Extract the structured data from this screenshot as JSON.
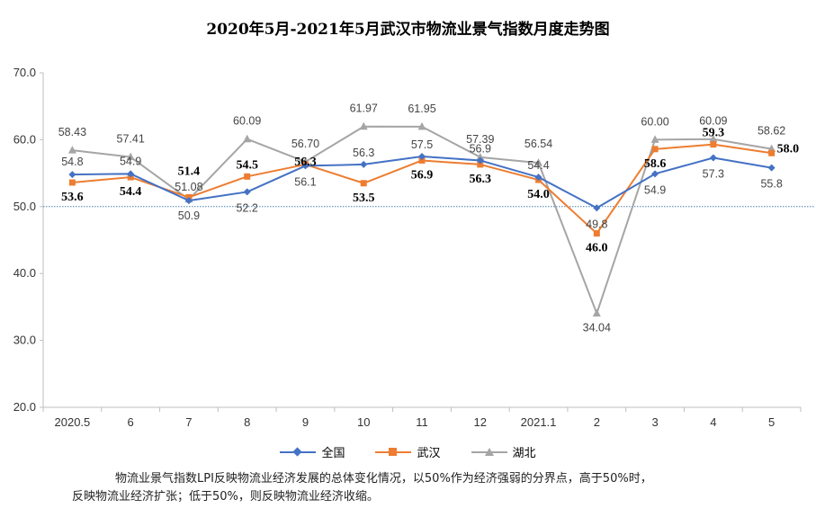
{
  "title": "2020年5月-2021年5月武汉市物流业景气指数月度走势图",
  "legend": {
    "national": "全国",
    "wuhan": "武汉",
    "hubei": "湖北"
  },
  "note": {
    "line1": "物流业景气指数LPI反映物流业经济发展的总体变化情况，以50%作为经济强弱的分界点，高于50%时，",
    "line2": "反映物流业经济扩张；低于50%，则反映物流业经济收缩。"
  },
  "colors": {
    "national": "#4472C4",
    "wuhan": "#ED7D31",
    "hubei": "#A5A5A5",
    "reference": "#4A7FB0"
  },
  "chart_data": {
    "type": "line",
    "title": "2020年5月-2021年5月武汉市物流业景气指数月度走势图",
    "categories": [
      "2020.5",
      "6",
      "7",
      "8",
      "9",
      "10",
      "11",
      "12",
      "2021.1",
      "2",
      "3",
      "4",
      "5"
    ],
    "ylim": [
      20,
      70
    ],
    "yticks": [
      "20.0",
      "30.0",
      "40.0",
      "50.0",
      "60.0",
      "70.0"
    ],
    "reference_line": 50,
    "series": [
      {
        "name": "全国",
        "marker": "diamond",
        "values": [
          54.8,
          54.9,
          50.9,
          52.2,
          56.1,
          56.3,
          57.5,
          56.9,
          54.4,
          49.8,
          54.9,
          57.3,
          55.8
        ],
        "labels": [
          "54.8",
          "54.9",
          "50.9",
          "52.2",
          "56.1",
          "56.3",
          "57.5",
          "56.9",
          "54.4",
          "49.8",
          "54.9",
          "57.3",
          "55.8"
        ]
      },
      {
        "name": "武汉",
        "marker": "square",
        "values": [
          53.6,
          54.4,
          51.4,
          54.5,
          56.3,
          53.5,
          56.9,
          56.3,
          54.0,
          46.0,
          58.6,
          59.3,
          58.0
        ],
        "labels": [
          "53.6",
          "54.4",
          "51.4",
          "54.5",
          "56.3",
          "53.5",
          "56.9",
          "56.3",
          "54.0",
          "46.0",
          "58.6",
          "59.3",
          "58.0"
        ]
      },
      {
        "name": "湖北",
        "marker": "triangle",
        "values": [
          58.43,
          57.41,
          51.08,
          60.09,
          56.7,
          61.97,
          61.95,
          57.39,
          56.54,
          34.04,
          60.0,
          60.09,
          58.62
        ],
        "labels": [
          "58.43",
          "57.41",
          "51.08",
          "60.09",
          "56.70",
          "61.97",
          "61.95",
          "57.39",
          "56.54",
          "34.04",
          "60.00",
          "60.09",
          "58.62"
        ]
      }
    ]
  }
}
